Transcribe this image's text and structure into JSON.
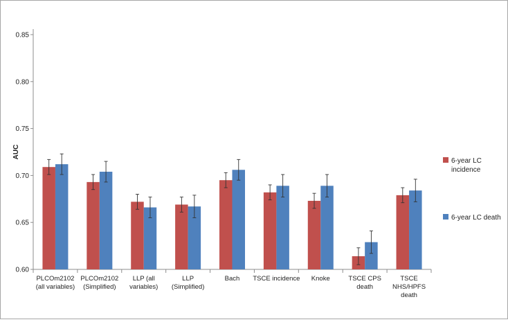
{
  "chart_data": {
    "type": "bar",
    "title": "",
    "xlabel": "",
    "ylabel": "AUC",
    "ylim": [
      0.6,
      0.85
    ],
    "yticks": [
      "0.60",
      "0.65",
      "0.70",
      "0.75",
      "0.80",
      "0.85"
    ],
    "ytick_values": [
      0.6,
      0.65,
      0.7,
      0.75,
      0.8,
      0.85
    ],
    "grid": false,
    "legend_position": "right",
    "categories": [
      [
        "PLCOm2102",
        "(all variables)"
      ],
      [
        "PLCOm2102",
        "(Simplified)"
      ],
      [
        "LLP  (all",
        "variables)"
      ],
      [
        "LLP",
        "(Simplified)"
      ],
      [
        "Bach"
      ],
      [
        "TSCE incidence"
      ],
      [
        "Knoke"
      ],
      [
        "TSCE CPS",
        "death"
      ],
      [
        "TSCE",
        "NHS/HPFS",
        "death"
      ]
    ],
    "series": [
      {
        "name": "6-year LC incidence",
        "legend_lines": [
          "6-year LC",
          "incidence"
        ],
        "color": "#c0504d",
        "values": [
          0.709,
          0.693,
          0.672,
          0.669,
          0.695,
          0.682,
          0.673,
          0.614,
          0.679
        ],
        "error": [
          0.008,
          0.008,
          0.008,
          0.008,
          0.008,
          0.008,
          0.008,
          0.009,
          0.008
        ]
      },
      {
        "name": "6-year LC death",
        "legend_lines": [
          "6-year LC death"
        ],
        "color": "#4f81bd",
        "values": [
          0.712,
          0.704,
          0.666,
          0.667,
          0.706,
          0.689,
          0.689,
          0.629,
          0.684
        ],
        "error": [
          0.011,
          0.011,
          0.011,
          0.012,
          0.011,
          0.012,
          0.012,
          0.012,
          0.012
        ]
      }
    ]
  }
}
